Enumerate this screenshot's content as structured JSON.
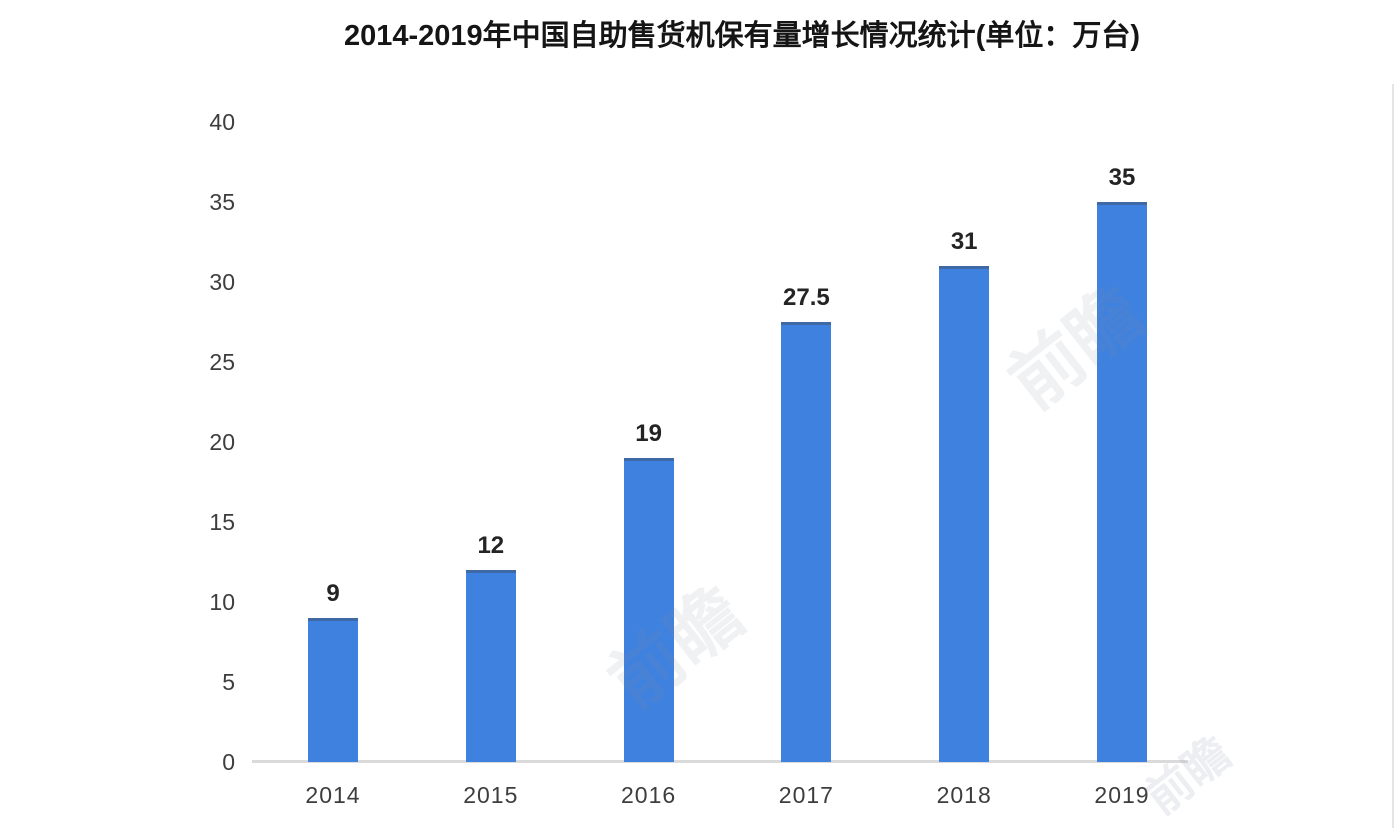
{
  "watermark": {
    "text": "前瞻"
  },
  "chart_data": {
    "type": "bar",
    "title": "2014-2019年中国自助售货机保有量增长情况统计(单位：万台)",
    "categories": [
      "2014",
      "2015",
      "2016",
      "2017",
      "2018",
      "2019"
    ],
    "values": [
      9,
      12,
      19,
      27.5,
      31,
      35
    ],
    "data_labels": [
      "9",
      "12",
      "19",
      "27.5",
      "31",
      "35"
    ],
    "xlabel": "",
    "ylabel": "",
    "ylim": [
      0,
      40
    ],
    "yticks": [
      0,
      5,
      10,
      15,
      20,
      25,
      30,
      35,
      40
    ],
    "grid": false,
    "legend": "none",
    "bar_color": "#3f81de",
    "axis_line_color": "#dadada"
  }
}
